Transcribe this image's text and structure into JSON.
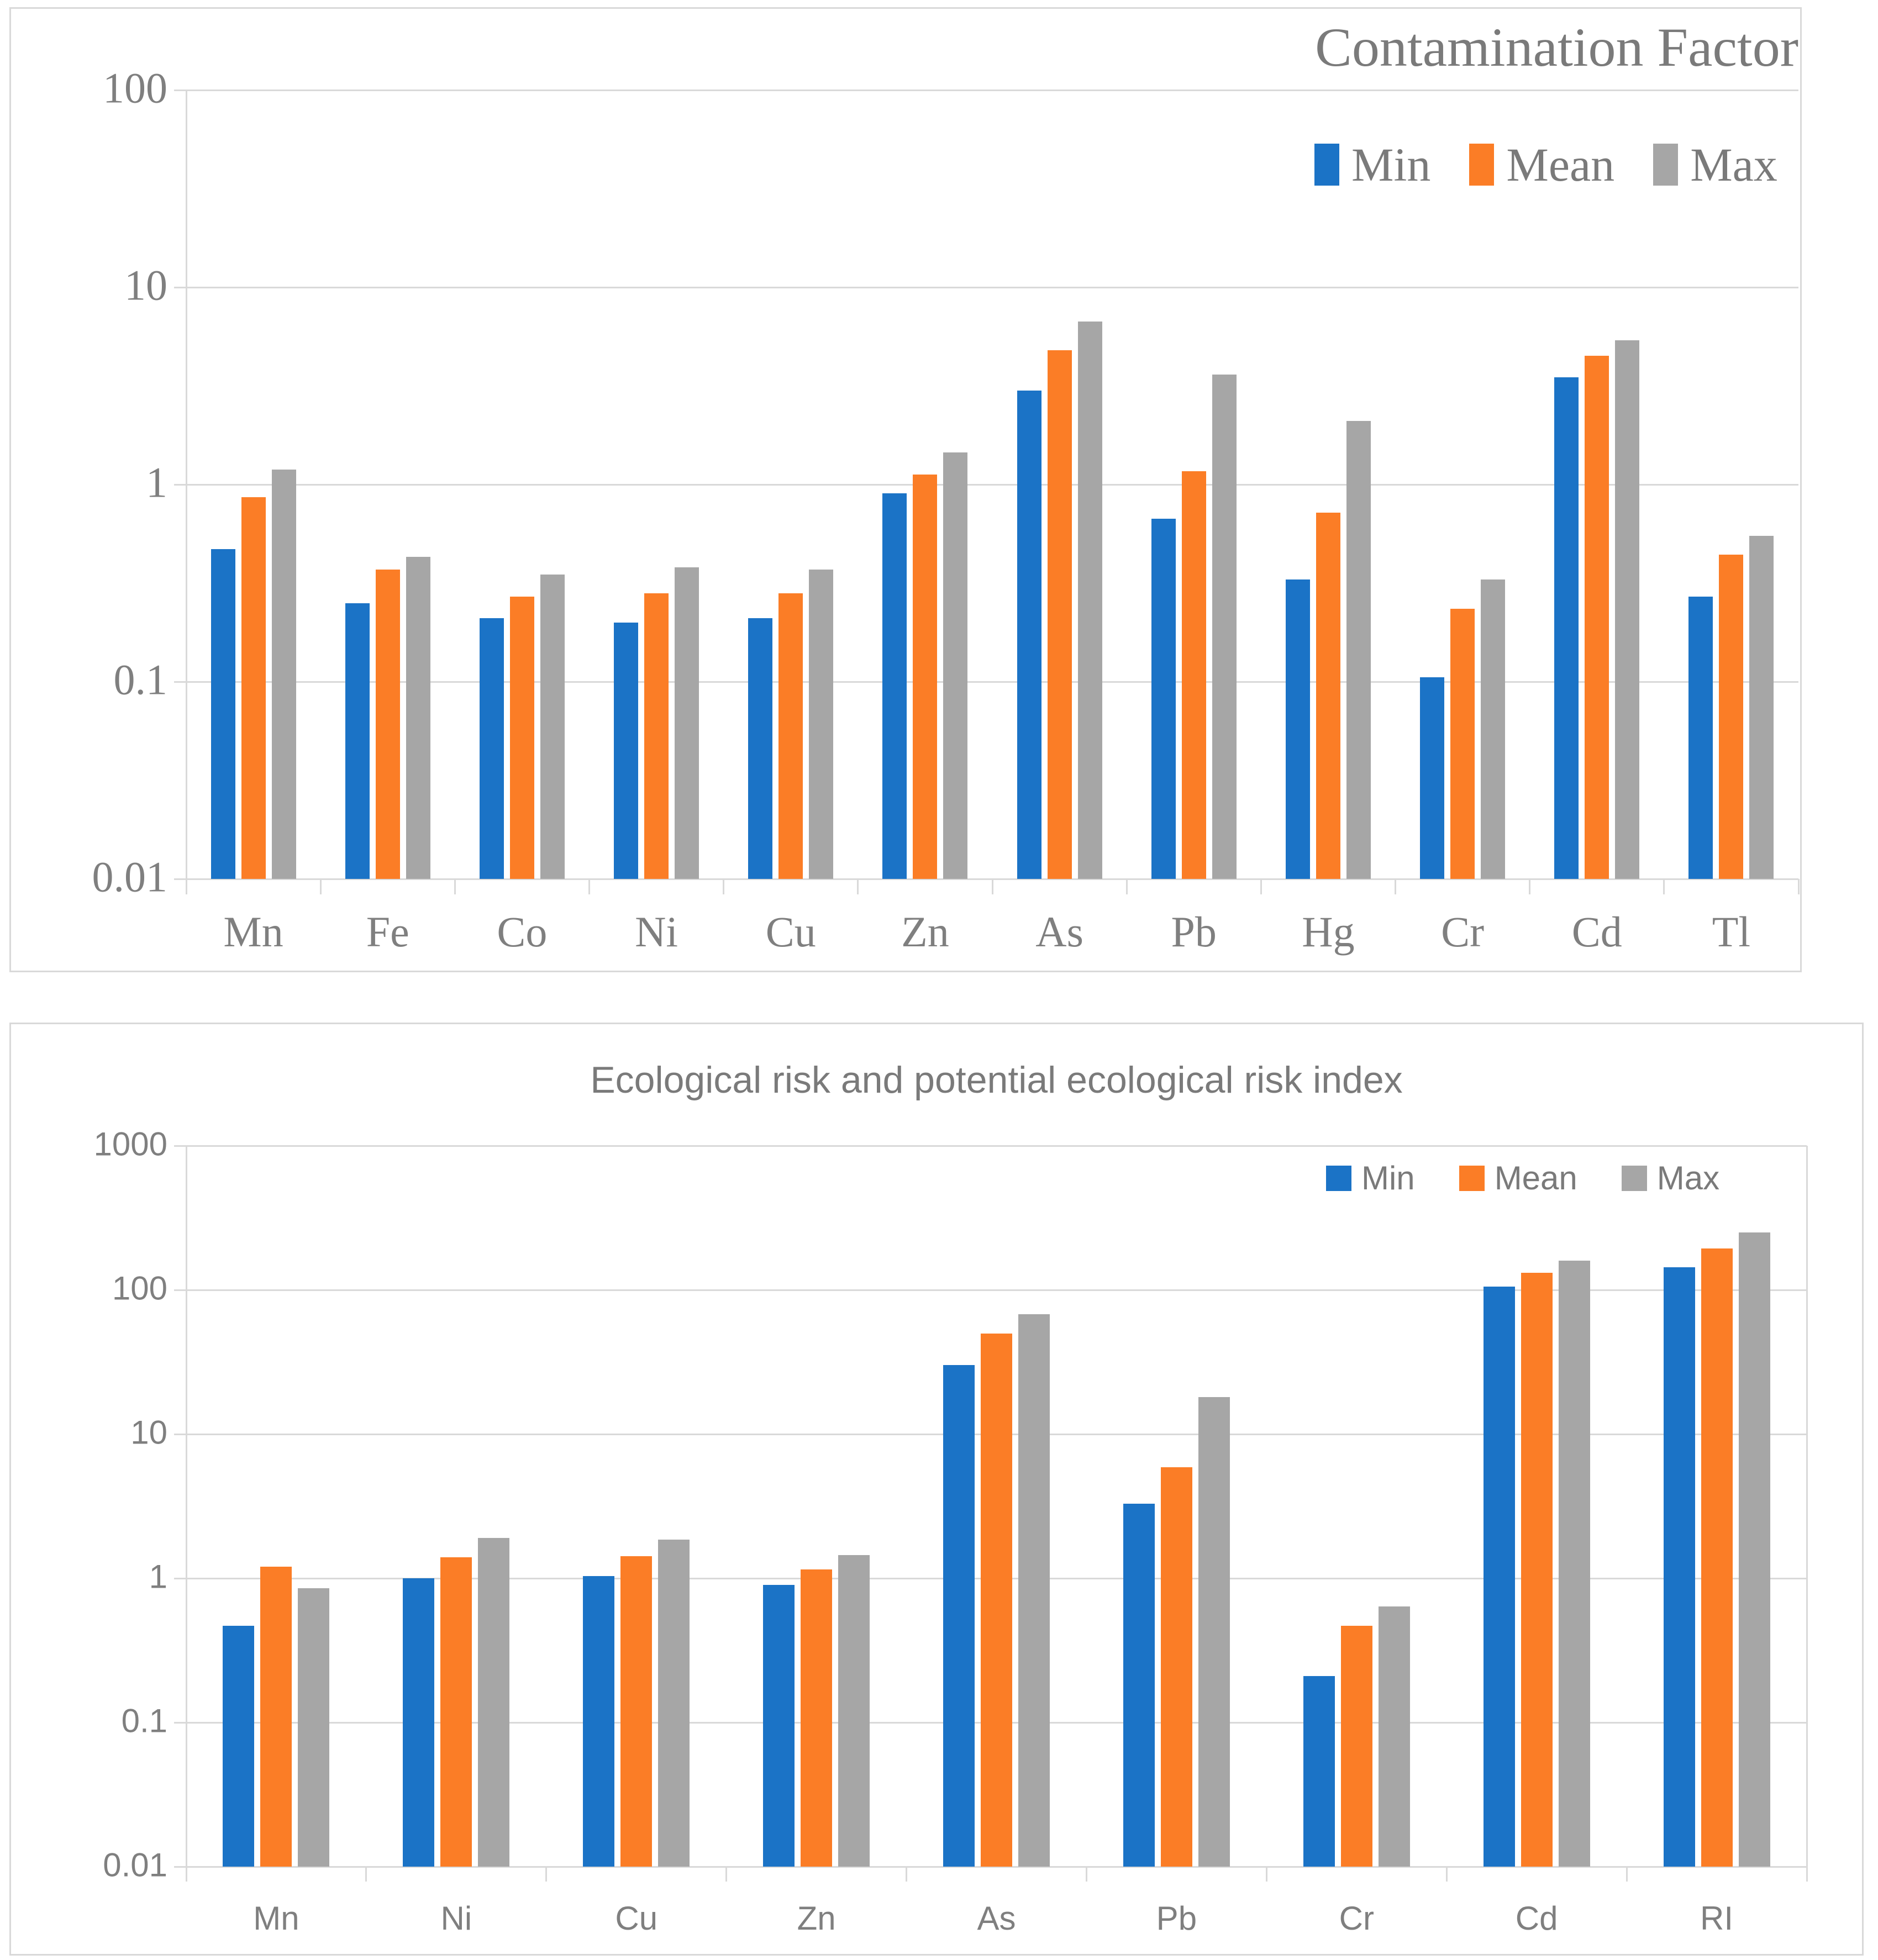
{
  "page": {
    "background": "#ffffff",
    "panel_border_color": "#d9d9d9"
  },
  "colors": {
    "min_blue": "#1b73c6",
    "mean_orange": "#fb7d26",
    "max_gray": "#a6a6a6",
    "gridline": "#d9d9d9",
    "text_gray": "#7f7f7f",
    "title_gray": "#7a7a7a"
  },
  "chart_data": [
    {
      "type": "bar",
      "title": "Contamination Factor",
      "y_scale": "log",
      "ylim": [
        0.01,
        100
      ],
      "grid": true,
      "legend_position": "top-right",
      "y_ticks": [
        {
          "label": "100",
          "value": 100
        },
        {
          "label": "10",
          "value": 10
        },
        {
          "label": "1",
          "value": 1
        },
        {
          "label": "0.1",
          "value": 0.1
        },
        {
          "label": "0.01",
          "value": 0.01
        }
      ],
      "categories": [
        "Mn",
        "Fe",
        "Co",
        "Ni",
        "Cu",
        "Zn",
        "As",
        "Pb",
        "Hg",
        "Cr",
        "Cd",
        "Tl"
      ],
      "series": [
        {
          "name": "Min",
          "color": "#1b73c6",
          "values": [
            0.47,
            0.25,
            0.21,
            0.2,
            0.21,
            0.9,
            3.0,
            0.67,
            0.33,
            0.105,
            3.5,
            0.27
          ]
        },
        {
          "name": "Mean",
          "color": "#fb7d26",
          "values": [
            0.86,
            0.37,
            0.27,
            0.28,
            0.28,
            1.12,
            4.8,
            1.17,
            0.72,
            0.235,
            4.5,
            0.44
          ]
        },
        {
          "name": "Max",
          "color": "#a6a6a6",
          "values": [
            1.19,
            0.43,
            0.35,
            0.38,
            0.37,
            1.45,
            6.7,
            3.6,
            2.1,
            0.33,
            5.4,
            0.55
          ]
        }
      ]
    },
    {
      "type": "bar",
      "title": "Ecological risk and potential ecological risk index",
      "y_scale": "log",
      "ylim": [
        0.01,
        1000
      ],
      "grid": true,
      "legend_position": "top-right",
      "y_ticks": [
        {
          "label": "1000",
          "value": 1000
        },
        {
          "label": "100",
          "value": 100
        },
        {
          "label": "10",
          "value": 10
        },
        {
          "label": "1",
          "value": 1
        },
        {
          "label": "0.1",
          "value": 0.1
        },
        {
          "label": "0.01",
          "value": 0.01
        }
      ],
      "categories": [
        "Mn",
        "Ni",
        "Cu",
        "Zn",
        "As",
        "Pb",
        "Cr",
        "Cd",
        "RI"
      ],
      "series": [
        {
          "name": "Min",
          "color": "#1b73c6",
          "values": [
            0.47,
            1.0,
            1.04,
            0.9,
            30,
            3.3,
            0.21,
            105,
            143
          ]
        },
        {
          "name": "Mean",
          "color": "#fb7d26",
          "values": [
            1.2,
            1.4,
            1.42,
            1.15,
            50,
            5.9,
            0.47,
            132,
            193
          ]
        },
        {
          "name": "Max",
          "color": "#a6a6a6",
          "values": [
            0.85,
            1.9,
            1.85,
            1.45,
            68,
            18,
            0.64,
            160,
            250
          ]
        }
      ]
    }
  ]
}
